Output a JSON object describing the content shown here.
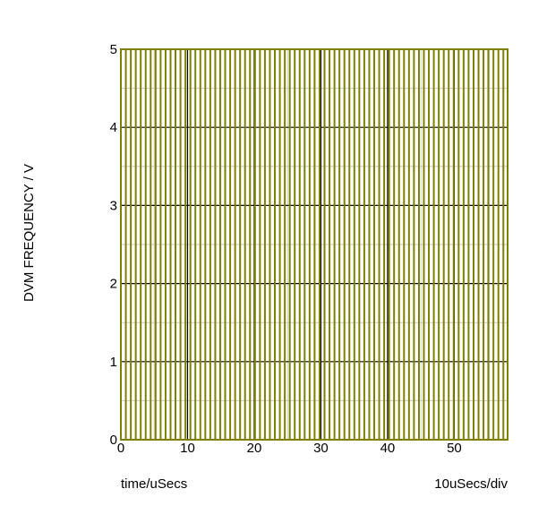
{
  "chart_data": {
    "type": "line",
    "title": "",
    "ylabel": "DVM FREQUENCY / V",
    "xlabel": "time/uSecs",
    "x_scale_note": "10uSecs/div",
    "xlim": [
      0,
      58
    ],
    "ylim": [
      0,
      5
    ],
    "x_ticks": [
      0,
      10,
      20,
      30,
      40,
      50
    ],
    "y_ticks": [
      0,
      1,
      2,
      3,
      4,
      5
    ],
    "grid": true,
    "series": [
      {
        "color": "#808000",
        "signal": "square-wave",
        "low": 0,
        "high": 5,
        "period_us": 1.49,
        "duty": 0.5,
        "start_us": 0
      }
    ],
    "colors": {
      "trace": "#808000",
      "major_grid": "#000000",
      "minor_grid": "#c8c8c8"
    }
  }
}
